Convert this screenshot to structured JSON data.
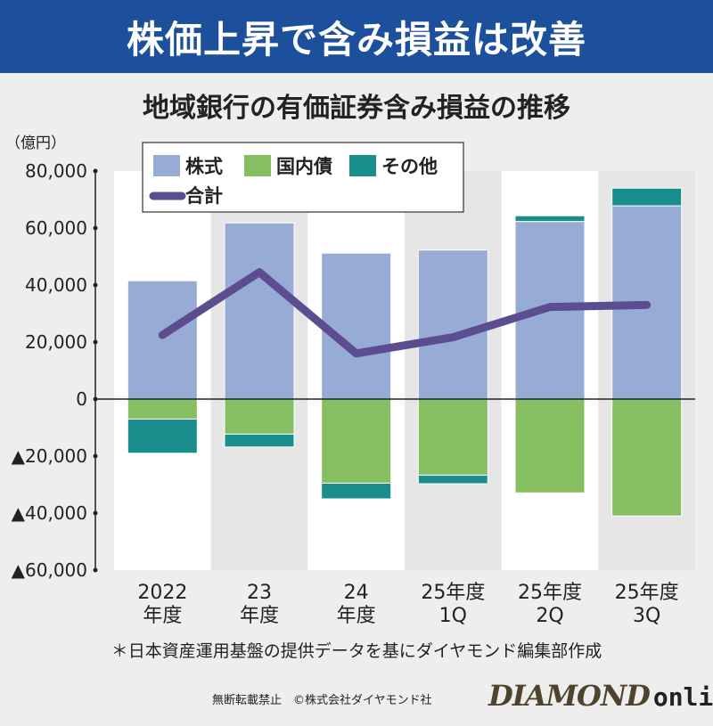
{
  "header": {
    "banner_title": "株価上昇で含み損益は改善",
    "subtitle": "地域銀行の有価証券含み損益の推移"
  },
  "chart_data": {
    "type": "bar",
    "stacked": true,
    "unit": "（億円）",
    "categories": [
      [
        "2022",
        "年度"
      ],
      [
        "23",
        "年度"
      ],
      [
        "24",
        "年度"
      ],
      [
        "25年度",
        "1Q"
      ],
      [
        "25年度",
        "2Q"
      ],
      [
        "25年度",
        "3Q"
      ]
    ],
    "series": [
      {
        "name": "株式",
        "color": "#97acd4",
        "values": [
          41500,
          61800,
          51200,
          52300,
          62300,
          67800
        ]
      },
      {
        "name": "国内債",
        "color": "#85bf62",
        "values": [
          -7000,
          -12300,
          -29500,
          -26700,
          -32900,
          -41000
        ]
      },
      {
        "name": "その他",
        "color": "#1a8d8d",
        "values": [
          -12000,
          -4500,
          -5500,
          -3000,
          2000,
          6200
        ]
      }
    ],
    "line": {
      "name": "合計",
      "color": "#5c4d91",
      "values": [
        22500,
        44500,
        16000,
        21700,
        32300,
        33000
      ]
    },
    "ylim": [
      -60000,
      80000
    ],
    "yticks": [
      80000,
      60000,
      40000,
      20000,
      0,
      -20000,
      -40000,
      -60000
    ],
    "ytick_labels": [
      "80,000",
      "60,000",
      "40,000",
      "20,000",
      "0",
      "▲20,000",
      "▲40,000",
      "▲60,000"
    ],
    "legend_position": "top-left"
  },
  "footer": {
    "note": "＊日本資産運用基盤の提供データを基にダイヤモンド編集部作成",
    "copyright": "無断転載禁止　©株式会社ダイヤモンド社",
    "logo_main": "DIAMOND",
    "logo_sub": "online"
  }
}
